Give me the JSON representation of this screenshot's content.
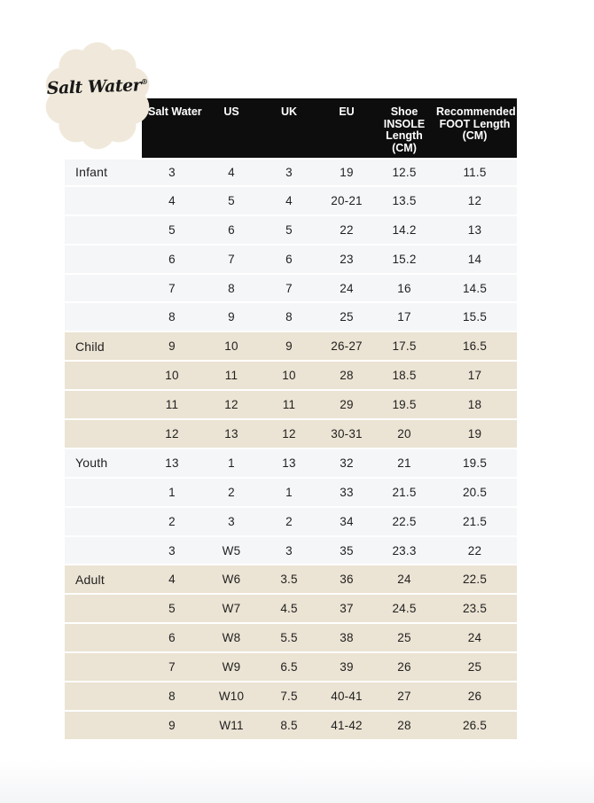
{
  "brand": {
    "logo_text": "Salt Water",
    "registered_mark": "®"
  },
  "colors": {
    "page_bg": "#ffffff",
    "header_bg": "#0d0d0d",
    "header_text": "#ffffff",
    "light_row_bg": "#f5f6f8",
    "beige_row_bg": "#ebe3d3",
    "row_divider": "#ffffff",
    "body_text": "#1f1f1f",
    "logo_bg": "#f0e9db"
  },
  "size_chart": {
    "headers": [
      "Salt Water",
      "US",
      "UK",
      "EU",
      "Shoe INSOLE Length (CM)",
      "Recommended FOOT Length (CM)"
    ],
    "sections": [
      {
        "name": "Infant",
        "shade": "light",
        "rows": [
          [
            "3",
            "4",
            "3",
            "19",
            "12.5",
            "11.5"
          ],
          [
            "4",
            "5",
            "4",
            "20-21",
            "13.5",
            "12"
          ],
          [
            "5",
            "6",
            "5",
            "22",
            "14.2",
            "13"
          ],
          [
            "6",
            "7",
            "6",
            "23",
            "15.2",
            "14"
          ],
          [
            "7",
            "8",
            "7",
            "24",
            "16",
            "14.5"
          ],
          [
            "8",
            "9",
            "8",
            "25",
            "17",
            "15.5"
          ]
        ]
      },
      {
        "name": "Child",
        "shade": "beige",
        "rows": [
          [
            "9",
            "10",
            "9",
            "26-27",
            "17.5",
            "16.5"
          ],
          [
            "10",
            "11",
            "10",
            "28",
            "18.5",
            "17"
          ],
          [
            "11",
            "12",
            "11",
            "29",
            "19.5",
            "18"
          ],
          [
            "12",
            "13",
            "12",
            "30-31",
            "20",
            "19"
          ]
        ]
      },
      {
        "name": "Youth",
        "shade": "light",
        "rows": [
          [
            "13",
            "1",
            "13",
            "32",
            "21",
            "19.5"
          ],
          [
            "1",
            "2",
            "1",
            "33",
            "21.5",
            "20.5"
          ],
          [
            "2",
            "3",
            "2",
            "34",
            "22.5",
            "21.5"
          ],
          [
            "3",
            "W5",
            "3",
            "35",
            "23.3",
            "22"
          ]
        ]
      },
      {
        "name": "Adult",
        "shade": "beige",
        "rows": [
          [
            "4",
            "W6",
            "3.5",
            "36",
            "24",
            "22.5"
          ],
          [
            "5",
            "W7",
            "4.5",
            "37",
            "24.5",
            "23.5"
          ],
          [
            "6",
            "W8",
            "5.5",
            "38",
            "25",
            "24"
          ],
          [
            "7",
            "W9",
            "6.5",
            "39",
            "26",
            "25"
          ],
          [
            "8",
            "W10",
            "7.5",
            "40-41",
            "27",
            "26"
          ],
          [
            "9",
            "W11",
            "8.5",
            "41-42",
            "28",
            "26.5"
          ]
        ]
      }
    ]
  }
}
